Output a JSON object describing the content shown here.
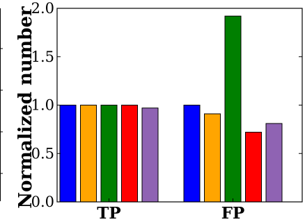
{
  "chart_data": {
    "type": "bar",
    "title": "",
    "xlabel": "",
    "ylabel": "Normalized number",
    "categories": [
      "TP",
      "FP"
    ],
    "ylim": [
      0,
      2.0
    ],
    "yticks": [
      "0.0",
      "0.5",
      "1.0",
      "1.5",
      "2.0"
    ],
    "grid": false,
    "legend": "none",
    "series": [
      {
        "color": "#0000ff",
        "values": [
          1.0,
          1.0
        ]
      },
      {
        "color": "#ffa500",
        "values": [
          1.0,
          0.91
        ]
      },
      {
        "color": "#007f00",
        "values": [
          1.0,
          1.92
        ]
      },
      {
        "color": "#ff0000",
        "values": [
          1.0,
          0.72
        ]
      },
      {
        "color": "#8f63b3",
        "values": [
          0.97,
          0.81
        ]
      }
    ]
  }
}
